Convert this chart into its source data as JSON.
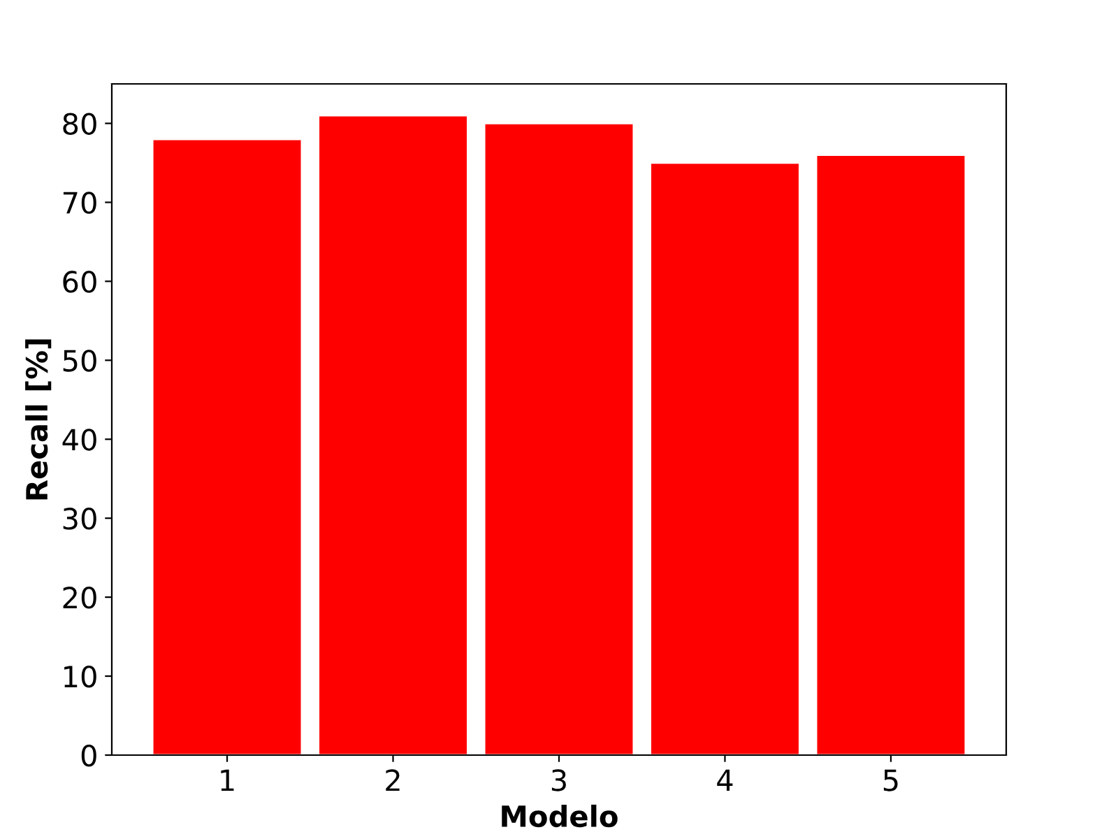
{
  "chart_data": {
    "type": "bar",
    "xlabel": "Modelo",
    "ylabel": "Recall [%]",
    "categories": [
      "1",
      "2",
      "3",
      "4",
      "5"
    ],
    "values": [
      78,
      81,
      80,
      75,
      76
    ],
    "color": "#ff0000",
    "ylim": [
      0,
      85
    ],
    "yticks": [
      0,
      10,
      20,
      30,
      40,
      50,
      60,
      70,
      80
    ],
    "grid": false
  }
}
